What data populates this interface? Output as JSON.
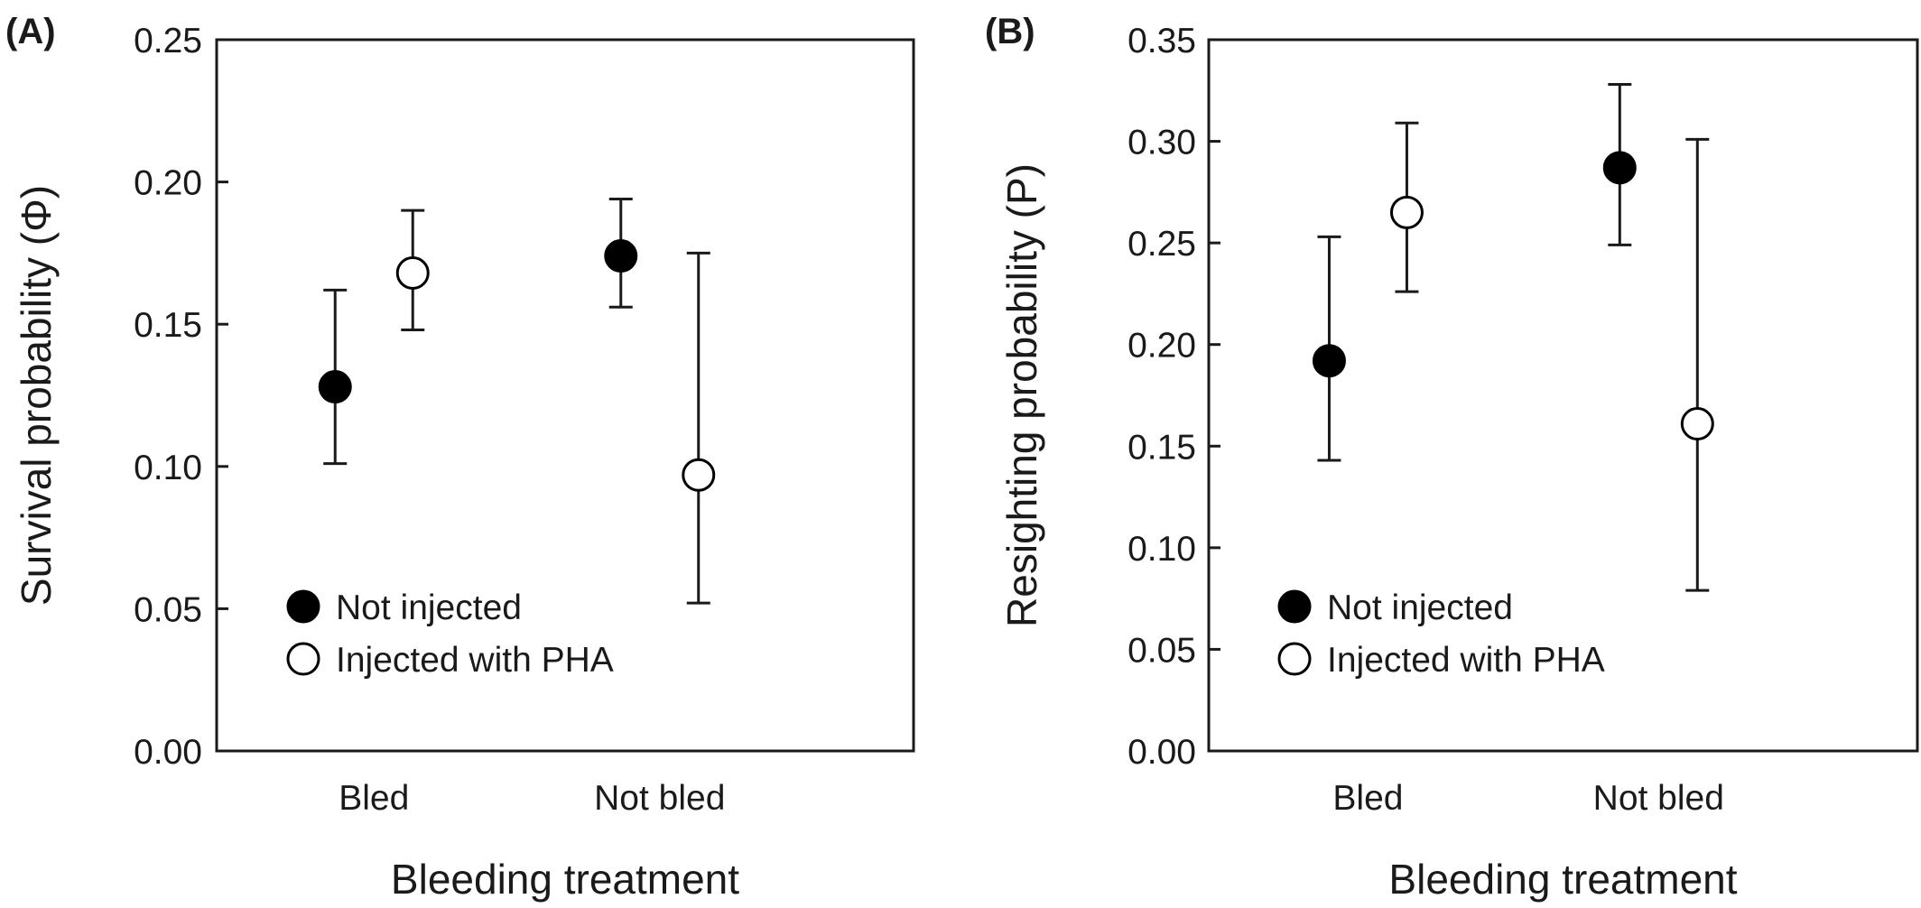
{
  "chart_data": [
    {
      "type": "scatter",
      "panel_label": "(A)",
      "xlabel": "Bleeding treatment",
      "ylabel": "Survival probability (Φ)",
      "ylim": [
        0,
        0.25
      ],
      "yticks": [
        "0.00",
        "0.05",
        "0.10",
        "0.15",
        "0.20",
        "0.25"
      ],
      "categories": [
        "Bled",
        "Not bled"
      ],
      "grid": false,
      "legend_position": "bottom-left",
      "series": [
        {
          "name": "Not injected",
          "marker": "filled-circle",
          "values": [
            0.128,
            0.174
          ],
          "err_low": [
            0.101,
            0.156
          ],
          "err_high": [
            0.162,
            0.194
          ]
        },
        {
          "name": "Injected with PHA",
          "marker": "open-circle",
          "values": [
            0.168,
            0.097
          ],
          "err_low": [
            0.148,
            0.052
          ],
          "err_high": [
            0.19,
            0.175
          ]
        }
      ]
    },
    {
      "type": "scatter",
      "panel_label": "(B)",
      "xlabel": "Bleeding treatment",
      "ylabel": "Resighting probability (P)",
      "ylim": [
        0,
        0.35
      ],
      "yticks": [
        "0.00",
        "0.05",
        "0.10",
        "0.15",
        "0.20",
        "0.25",
        "0.30",
        "0.35"
      ],
      "categories": [
        "Bled",
        "Not bled"
      ],
      "grid": false,
      "legend_position": "bottom-left",
      "series": [
        {
          "name": "Not injected",
          "marker": "filled-circle",
          "values": [
            0.192,
            0.287
          ],
          "err_low": [
            0.143,
            0.249
          ],
          "err_high": [
            0.253,
            0.328
          ]
        },
        {
          "name": "Injected with PHA",
          "marker": "open-circle",
          "values": [
            0.265,
            0.161
          ],
          "err_low": [
            0.226,
            0.079
          ],
          "err_high": [
            0.309,
            0.301
          ]
        }
      ]
    }
  ],
  "colors": {
    "axis": "#1a1a1a",
    "filled_marker": "#000000",
    "open_marker_fill": "#ffffff"
  }
}
